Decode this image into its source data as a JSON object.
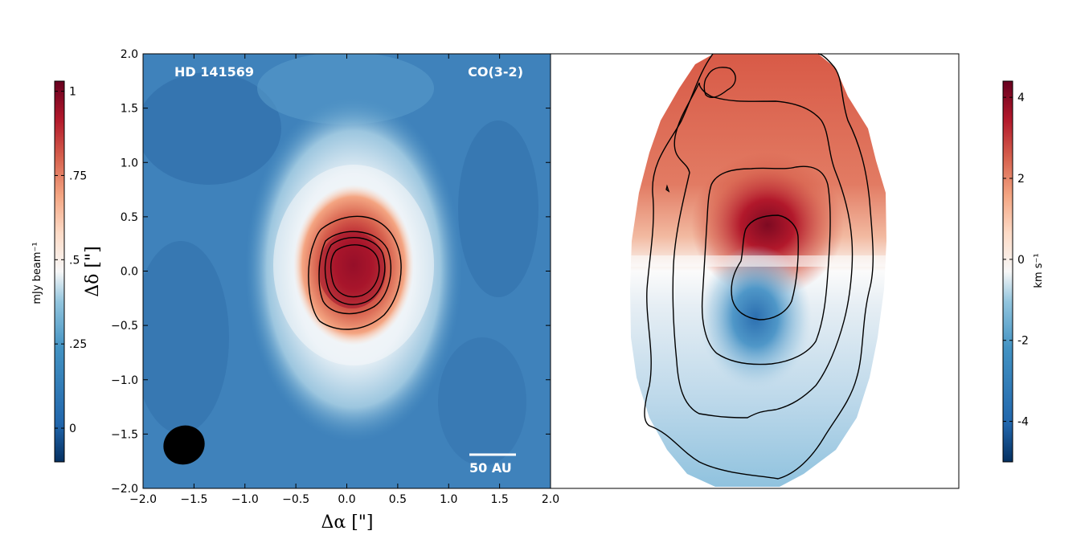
{
  "chart_data": [
    {
      "type": "heatmap",
      "panel": "left",
      "title_left": "HD 141569",
      "title_right": "CO(3-2)",
      "xlabel": "Δα [\"]",
      "ylabel": "Δδ [\"]",
      "xlim": [
        -2.0,
        2.0
      ],
      "ylim": [
        -2.0,
        2.0
      ],
      "x_ticks": [
        "−2.0",
        "−1.5",
        "−1.0",
        "−0.5",
        "0.0",
        "0.5",
        "1.0",
        "1.5",
        "2.0"
      ],
      "x_tick_values": [
        -2.0,
        -1.5,
        -1.0,
        -0.5,
        0.0,
        0.5,
        1.0,
        1.5,
        2.0
      ],
      "y_ticks": [
        "2.0",
        "1.5",
        "1.0",
        "0.5",
        "0.0",
        "−0.5",
        "−1.0",
        "−1.5",
        "−2.0"
      ],
      "y_tick_values": [
        2.0,
        1.5,
        1.0,
        0.5,
        0.0,
        -0.5,
        -1.0,
        -1.5,
        -2.0
      ],
      "scale_bar_label": "50 AU",
      "colorbar": {
        "label": "mJy beam⁻¹",
        "ticks": [
          "1",
          ".75",
          ".5",
          ".25",
          "0"
        ],
        "tick_values": [
          1.0,
          0.75,
          0.5,
          0.25,
          0.0
        ],
        "range": [
          -0.1,
          1.03
        ],
        "colormap": "RdBu_r"
      }
    },
    {
      "type": "heatmap",
      "panel": "right",
      "description_values": "velocity map",
      "colorbar": {
        "label": "km s⁻¹",
        "ticks": [
          "4",
          "2",
          "0",
          "-2",
          "-4"
        ],
        "tick_values": [
          4,
          2,
          0,
          -2,
          -4
        ],
        "range": [
          -5,
          4.4
        ],
        "colormap": "RdBu_r"
      }
    }
  ],
  "colors": {
    "deep_red": "#67001f",
    "red": "#d6604d",
    "white": "#f7f7f7",
    "blue": "#4393c3",
    "deep_blue": "#053061"
  }
}
